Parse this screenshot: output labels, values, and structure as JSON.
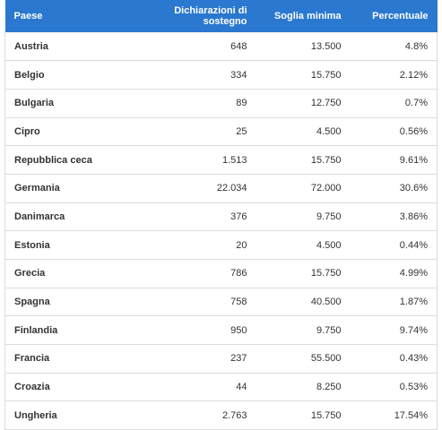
{
  "table": {
    "header": [
      "Paese",
      "Dichiarazioni di sostegno",
      "Soglia minima",
      "Percentuale"
    ],
    "rows": [
      [
        "Austria",
        "648",
        "13.500",
        "4.8%"
      ],
      [
        "Belgio",
        "334",
        "15.750",
        "2.12%"
      ],
      [
        "Bulgaria",
        "89",
        "12.750",
        "0.7%"
      ],
      [
        "Cipro",
        "25",
        "4.500",
        "0.56%"
      ],
      [
        "Repubblica ceca",
        "1.513",
        "15.750",
        "9.61%"
      ],
      [
        "Germania",
        "22.034",
        "72.000",
        "30.6%"
      ],
      [
        "Danimarca",
        "376",
        "9.750",
        "3.86%"
      ],
      [
        "Estonia",
        "20",
        "4.500",
        "0.44%"
      ],
      [
        "Grecia",
        "786",
        "15.750",
        "4.99%"
      ],
      [
        "Spagna",
        "758",
        "40.500",
        "1.87%"
      ],
      [
        "Finlandia",
        "950",
        "9.750",
        "9.74%"
      ],
      [
        "Francia",
        "237",
        "55.500",
        "0.43%"
      ],
      [
        "Croazia",
        "44",
        "8.250",
        "0.53%"
      ],
      [
        "Ungheria",
        "2.763",
        "15.750",
        "17.54%"
      ]
    ]
  }
}
